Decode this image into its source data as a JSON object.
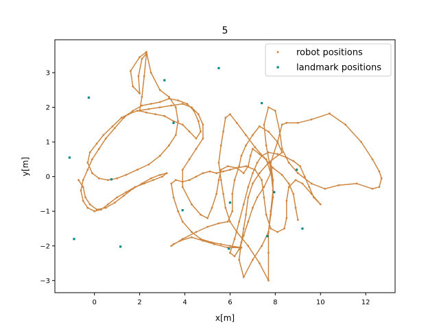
{
  "chart_data": {
    "type": "scatter",
    "title": "5",
    "xlabel": "x[m]",
    "ylabel": "y[m]",
    "xlim": [
      -1.75,
      13.3
    ],
    "ylim": [
      -3.35,
      3.95
    ],
    "xticks": [
      0,
      2,
      4,
      6,
      8,
      10,
      12
    ],
    "yticks": [
      -3,
      -2,
      -1,
      0,
      1,
      2,
      3
    ],
    "grid": false,
    "legend_position": "top-right",
    "series": [
      {
        "name": "robot positions",
        "marker": "dot",
        "color": "#cd853f",
        "connected": true,
        "points": [
          [
            -0.7,
            -0.1
          ],
          [
            -0.5,
            -0.3
          ],
          [
            -0.4,
            -0.6
          ],
          [
            -0.2,
            -0.8
          ],
          [
            0.1,
            -0.95
          ],
          [
            0.5,
            -0.9
          ],
          [
            0.9,
            -0.75
          ],
          [
            1.3,
            -0.55
          ],
          [
            1.7,
            -0.35
          ],
          [
            2.1,
            -0.2
          ],
          [
            2.5,
            -0.05
          ],
          [
            2.9,
            0.05
          ],
          [
            3.2,
            0.1
          ],
          [
            3.0,
            0.0
          ],
          [
            2.6,
            -0.1
          ],
          [
            2.2,
            -0.2
          ],
          [
            1.8,
            -0.3
          ],
          [
            1.4,
            -0.45
          ],
          [
            1.0,
            -0.6
          ],
          [
            0.6,
            -0.8
          ],
          [
            0.3,
            -0.95
          ],
          [
            0.0,
            -1.0
          ],
          [
            -0.3,
            -0.9
          ],
          [
            -0.5,
            -0.7
          ],
          [
            -0.6,
            -0.4
          ],
          [
            -0.5,
            -0.1
          ],
          [
            -0.3,
            0.2
          ],
          [
            -0.1,
            0.5
          ],
          [
            0.2,
            0.8
          ],
          [
            0.5,
            1.1
          ],
          [
            0.9,
            1.4
          ],
          [
            1.3,
            1.7
          ],
          [
            1.7,
            1.9
          ],
          [
            2.1,
            2.05
          ],
          [
            2.5,
            2.1
          ],
          [
            2.9,
            2.15
          ],
          [
            3.3,
            2.25
          ],
          [
            3.7,
            2.2
          ],
          [
            4.1,
            2.1
          ],
          [
            4.4,
            1.9
          ],
          [
            4.6,
            1.6
          ],
          [
            4.7,
            1.3
          ],
          [
            4.5,
            1.1
          ],
          [
            4.2,
            1.3
          ],
          [
            3.9,
            1.5
          ],
          [
            3.5,
            1.6
          ],
          [
            3.1,
            1.75
          ],
          [
            2.7,
            1.8
          ],
          [
            2.3,
            1.85
          ],
          [
            2.0,
            1.9
          ],
          [
            2.1,
            2.3
          ],
          [
            2.2,
            2.9
          ],
          [
            2.3,
            3.55
          ],
          [
            2.1,
            3.4
          ],
          [
            1.95,
            2.9
          ],
          [
            2.0,
            2.4
          ],
          [
            1.7,
            2.6
          ],
          [
            1.6,
            3.05
          ],
          [
            2.0,
            3.45
          ],
          [
            2.3,
            3.6
          ],
          [
            2.5,
            3.0
          ],
          [
            2.9,
            2.5
          ],
          [
            3.3,
            2.3
          ],
          [
            3.6,
            2.0
          ],
          [
            3.7,
            1.6
          ],
          [
            3.6,
            1.2
          ],
          [
            3.3,
            0.9
          ],
          [
            2.9,
            0.6
          ],
          [
            2.4,
            0.35
          ],
          [
            1.9,
            0.2
          ],
          [
            1.4,
            0.05
          ],
          [
            1.0,
            -0.05
          ],
          [
            0.6,
            -0.1
          ],
          [
            0.2,
            -0.05
          ],
          [
            -0.1,
            0.1
          ],
          [
            -0.3,
            0.4
          ],
          [
            -0.2,
            0.7
          ],
          [
            0.1,
            0.95
          ],
          [
            0.4,
            1.2
          ],
          [
            0.8,
            1.45
          ],
          [
            1.2,
            1.7
          ],
          [
            1.5,
            1.8
          ],
          [
            1.9,
            1.9
          ],
          [
            2.4,
            1.95
          ],
          [
            2.9,
            2.0
          ],
          [
            3.4,
            2.05
          ],
          [
            3.9,
            2.1
          ],
          [
            4.3,
            2.0
          ],
          [
            4.6,
            1.8
          ],
          [
            4.8,
            1.5
          ],
          [
            4.8,
            1.1
          ],
          [
            4.5,
            0.8
          ],
          [
            4.2,
            0.5
          ],
          [
            3.9,
            0.2
          ],
          [
            3.9,
            -0.3
          ],
          [
            4.3,
            -0.8
          ],
          [
            4.7,
            -1.1
          ],
          [
            5.0,
            -1.2
          ],
          [
            5.2,
            -0.9
          ],
          [
            5.4,
            -0.5
          ],
          [
            5.5,
            -0.1
          ],
          [
            5.6,
            0.2
          ],
          [
            5.9,
            0.3
          ],
          [
            6.3,
            0.25
          ],
          [
            6.6,
            0.1
          ],
          [
            6.8,
            0.3
          ],
          [
            6.9,
            0.6
          ],
          [
            7.0,
            0.8
          ],
          [
            7.3,
            0.65
          ],
          [
            7.6,
            0.5
          ],
          [
            7.8,
            0.1
          ],
          [
            7.5,
            -0.3
          ],
          [
            7.2,
            -0.6
          ],
          [
            7.0,
            -0.9
          ],
          [
            6.8,
            -1.3
          ],
          [
            6.6,
            -1.7
          ],
          [
            6.4,
            -2.1
          ],
          [
            6.2,
            -2.3
          ],
          [
            6.0,
            -2.2
          ],
          [
            6.2,
            -1.8
          ],
          [
            6.4,
            -1.3
          ],
          [
            6.6,
            -0.8
          ],
          [
            6.8,
            -0.3
          ],
          [
            7.0,
            0.1
          ],
          [
            7.2,
            0.4
          ],
          [
            7.4,
            0.6
          ],
          [
            7.7,
            0.7
          ],
          [
            8.1,
            0.65
          ],
          [
            8.5,
            0.55
          ],
          [
            8.8,
            0.45
          ],
          [
            9.1,
            0.3
          ],
          [
            9.3,
            0.0
          ],
          [
            9.5,
            -0.3
          ],
          [
            9.7,
            -0.6
          ],
          [
            10.0,
            -0.8
          ],
          [
            9.6,
            -0.5
          ],
          [
            9.2,
            -0.2
          ],
          [
            8.9,
            -0.1
          ],
          [
            8.6,
            -0.3
          ],
          [
            8.5,
            -0.7
          ],
          [
            8.5,
            -1.2
          ],
          [
            8.4,
            -1.5
          ],
          [
            8.1,
            -1.6
          ],
          [
            7.8,
            -1.5
          ],
          [
            7.6,
            -1.1
          ],
          [
            7.5,
            -0.6
          ],
          [
            7.4,
            -0.1
          ],
          [
            7.1,
            0.2
          ],
          [
            6.7,
            0.3
          ],
          [
            6.3,
            0.25
          ],
          [
            6.0,
            0.2
          ],
          [
            5.7,
            0.15
          ],
          [
            5.4,
            0.1
          ],
          [
            5.1,
            0.15
          ],
          [
            4.8,
            0.1
          ],
          [
            4.5,
            0.0
          ],
          [
            4.2,
            -0.1
          ],
          [
            3.9,
            -0.15
          ],
          [
            3.6,
            -0.1
          ],
          [
            3.4,
            -0.2
          ],
          [
            3.5,
            -0.6
          ],
          [
            3.7,
            -1.0
          ],
          [
            3.9,
            -1.3
          ],
          [
            4.3,
            -1.6
          ],
          [
            4.7,
            -1.8
          ],
          [
            5.2,
            -1.9
          ],
          [
            5.6,
            -1.95
          ],
          [
            6.0,
            -2.0
          ],
          [
            6.5,
            -2.05
          ],
          [
            5.9,
            -2.05
          ],
          [
            5.3,
            -1.95
          ],
          [
            4.8,
            -1.85
          ],
          [
            4.3,
            -1.75
          ],
          [
            3.8,
            -1.85
          ],
          [
            3.5,
            -1.95
          ],
          [
            3.4,
            -2.0
          ],
          [
            3.9,
            -1.8
          ],
          [
            4.5,
            -1.6
          ],
          [
            5.0,
            -1.45
          ],
          [
            5.5,
            -1.35
          ],
          [
            5.9,
            -1.3
          ],
          [
            6.1,
            -1.0
          ],
          [
            6.1,
            -0.5
          ],
          [
            6.2,
            -0.1
          ],
          [
            6.4,
            0.3
          ],
          [
            6.5,
            0.6
          ],
          [
            6.7,
            0.9
          ],
          [
            7.0,
            1.2
          ],
          [
            7.3,
            1.45
          ],
          [
            7.7,
            1.3
          ],
          [
            8.1,
            1.0
          ],
          [
            8.3,
            0.7
          ],
          [
            7.7,
            0.4
          ],
          [
            7.3,
            0.1
          ],
          [
            7.0,
            -0.2
          ],
          [
            6.8,
            -0.6
          ],
          [
            6.7,
            -1.1
          ],
          [
            6.6,
            -1.5
          ],
          [
            6.5,
            -1.9
          ],
          [
            6.4,
            -2.4
          ],
          [
            6.6,
            -2.9
          ],
          [
            7.0,
            -2.4
          ],
          [
            7.4,
            -2.0
          ],
          [
            7.7,
            -1.6
          ],
          [
            7.8,
            -1.1
          ],
          [
            7.9,
            -0.6
          ],
          [
            7.9,
            -0.1
          ],
          [
            7.8,
            0.4
          ],
          [
            8.1,
            1.0
          ],
          [
            8.3,
            1.5
          ],
          [
            8.5,
            1.55
          ],
          [
            9.0,
            1.55
          ],
          [
            9.6,
            1.65
          ],
          [
            10.4,
            1.82
          ],
          [
            11.1,
            1.5
          ],
          [
            11.8,
            1.0
          ],
          [
            12.3,
            0.5
          ],
          [
            12.6,
            0.15
          ],
          [
            12.7,
            -0.05
          ],
          [
            12.6,
            -0.3
          ],
          [
            12.3,
            -0.35
          ],
          [
            11.6,
            -0.2
          ],
          [
            10.8,
            -0.25
          ],
          [
            10.2,
            -0.35
          ],
          [
            9.6,
            -0.2
          ],
          [
            9.0,
            0.1
          ],
          [
            8.6,
            0.4
          ],
          [
            8.3,
            0.8
          ],
          [
            8.2,
            1.3
          ],
          [
            8.0,
            1.9
          ],
          [
            7.7,
            2.0
          ],
          [
            7.5,
            1.5
          ],
          [
            7.6,
            0.9
          ],
          [
            7.8,
            0.2
          ],
          [
            7.9,
            -0.4
          ],
          [
            7.8,
            -1.0
          ],
          [
            7.7,
            -1.6
          ],
          [
            7.7,
            -2.2
          ],
          [
            7.7,
            -3.0
          ],
          [
            7.3,
            -2.5
          ],
          [
            6.8,
            -2.0
          ],
          [
            6.3,
            -1.6
          ],
          [
            6.0,
            -1.3
          ],
          [
            5.8,
            -0.9
          ],
          [
            5.7,
            -0.5
          ],
          [
            5.6,
            -0.1
          ],
          [
            5.5,
            0.4
          ],
          [
            5.6,
            0.9
          ],
          [
            5.7,
            1.3
          ],
          [
            5.8,
            1.7
          ],
          [
            6.0,
            1.8
          ],
          [
            6.3,
            1.55
          ],
          [
            6.7,
            1.2
          ],
          [
            7.1,
            0.85
          ],
          [
            7.5,
            0.55
          ],
          [
            7.9,
            0.25
          ],
          [
            8.3,
            0.05
          ],
          [
            8.6,
            -0.2
          ],
          [
            8.8,
            -0.5
          ],
          [
            8.9,
            -0.9
          ],
          [
            9.0,
            -1.25
          ]
        ]
      },
      {
        "name": "landmark positions",
        "marker": "square",
        "color": "#008b8b",
        "connected": false,
        "points": [
          [
            -1.1,
            0.55
          ],
          [
            -0.9,
            -1.8
          ],
          [
            -0.25,
            2.28
          ],
          [
            0.75,
            -0.08
          ],
          [
            1.15,
            -2.02
          ],
          [
            3.1,
            2.78
          ],
          [
            3.5,
            1.55
          ],
          [
            3.9,
            -0.97
          ],
          [
            5.5,
            3.13
          ],
          [
            6.0,
            -0.75
          ],
          [
            5.95,
            -2.08
          ],
          [
            7.4,
            2.12
          ],
          [
            7.65,
            -1.72
          ],
          [
            7.95,
            -0.45
          ],
          [
            8.95,
            0.2
          ],
          [
            9.2,
            -1.5
          ]
        ]
      }
    ]
  }
}
